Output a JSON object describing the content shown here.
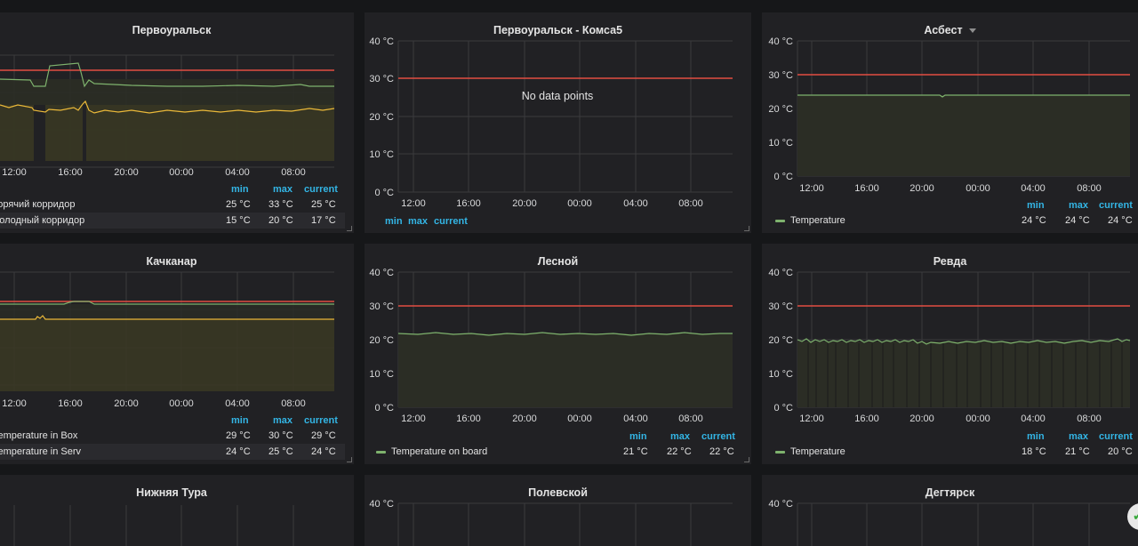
{
  "panels": {
    "p1": {
      "title": "Первоуральск",
      "x_ticks": [
        "12:00",
        "16:00",
        "20:00",
        "00:00",
        "04:00",
        "08:00"
      ],
      "legend_headers": {
        "min": "min",
        "max": "max",
        "current": "current"
      },
      "series": [
        {
          "name": "Горячий корридор",
          "min": "25 °C",
          "max": "33 °C",
          "current": "25 °C",
          "color": "#7eb26d"
        },
        {
          "name": "Холодный корридор",
          "min": "15 °C",
          "max": "20 °C",
          "current": "17 °C",
          "color": "#eab839"
        }
      ]
    },
    "p2": {
      "title": "Первоуральск - Комса5",
      "y_ticks": [
        "40 °C",
        "30 °C",
        "20 °C",
        "10 °C",
        "0 °C"
      ],
      "x_ticks": [
        "12:00",
        "16:00",
        "20:00",
        "00:00",
        "04:00",
        "08:00"
      ],
      "no_data": "No data points",
      "legend_headers": {
        "min": "min",
        "max": "max",
        "current": "current"
      }
    },
    "p3": {
      "title": "Асбест",
      "y_ticks": [
        "40 °C",
        "30 °C",
        "20 °C",
        "10 °C",
        "0 °C"
      ],
      "x_ticks": [
        "12:00",
        "16:00",
        "20:00",
        "00:00",
        "04:00",
        "08:00"
      ],
      "legend_headers": {
        "min": "min",
        "max": "max",
        "current": "current"
      },
      "series": [
        {
          "name": "Temperature",
          "min": "24 °C",
          "max": "24 °C",
          "current": "24 °C",
          "color": "#7eb26d"
        }
      ]
    },
    "p4": {
      "title": "Качканар",
      "x_ticks": [
        "12:00",
        "16:00",
        "20:00",
        "00:00",
        "04:00",
        "08:00"
      ],
      "legend_headers": {
        "min": "min",
        "max": "max",
        "current": "current"
      },
      "series": [
        {
          "name": "Temperature in Box",
          "min": "29 °C",
          "max": "30 °C",
          "current": "29 °C",
          "color": "#7eb26d"
        },
        {
          "name": "Temperature in Serv",
          "min": "24 °C",
          "max": "25 °C",
          "current": "24 °C",
          "color": "#eab839"
        }
      ]
    },
    "p5": {
      "title": "Лесной",
      "y_ticks": [
        "40 °C",
        "30 °C",
        "20 °C",
        "10 °C",
        "0 °C"
      ],
      "x_ticks": [
        "12:00",
        "16:00",
        "20:00",
        "00:00",
        "04:00",
        "08:00"
      ],
      "legend_headers": {
        "min": "min",
        "max": "max",
        "current": "current"
      },
      "series": [
        {
          "name": "Temperature on board",
          "min": "21 °C",
          "max": "22 °C",
          "current": "22 °C",
          "color": "#7eb26d"
        }
      ]
    },
    "p6": {
      "title": "Ревда",
      "y_ticks": [
        "40 °C",
        "30 °C",
        "20 °C",
        "10 °C",
        "0 °C"
      ],
      "x_ticks": [
        "12:00",
        "16:00",
        "20:00",
        "00:00",
        "04:00",
        "08:00"
      ],
      "legend_headers": {
        "min": "min",
        "max": "max",
        "current": "current"
      },
      "series": [
        {
          "name": "Temperature",
          "min": "18 °C",
          "max": "21 °C",
          "current": "20 °C",
          "color": "#7eb26d"
        }
      ]
    },
    "p7": {
      "title": "Нижняя Тура"
    },
    "p8": {
      "title": "Полевской",
      "y_ticks": [
        "40 °C"
      ]
    },
    "p9": {
      "title": "Дегтярск",
      "y_ticks": [
        "40 °C"
      ]
    }
  },
  "colors": {
    "threshold": "#e24d42",
    "series_green": "#7eb26d",
    "series_yellow": "#eab839",
    "legend_header": "#33b5e5",
    "panel_bg": "#212124",
    "page_bg": "#161719"
  },
  "badge": {
    "icon": "grafana-helper-icon",
    "glyph": "✔"
  }
}
